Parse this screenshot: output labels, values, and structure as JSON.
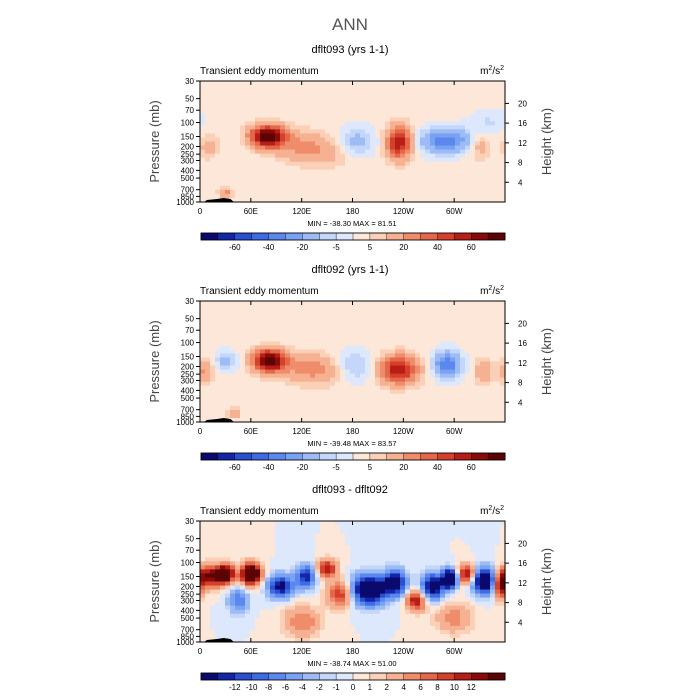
{
  "page_title": "ANN",
  "chart_data": [
    {
      "type": "heatmap",
      "title": "dflt093 (yrs 1-1)",
      "subtitle": "Transient eddy momentum",
      "units": "m2/s2",
      "units_base": "m",
      "units_sup1": "2",
      "units_mid": "/s",
      "units_sup2": "2",
      "ylabel": "Pressure (mb)",
      "ylabel2": "Height (km)",
      "x_ticks": [
        "0",
        "60E",
        "120E",
        "180",
        "120W",
        "60W"
      ],
      "x_tick_lon": [
        0,
        60,
        120,
        180,
        240,
        300
      ],
      "xlim": [
        0,
        360
      ],
      "y_ticks": [
        "30",
        "50",
        "70",
        "100",
        "150",
        "200",
        "250",
        "300",
        "400",
        "500",
        "700",
        "850",
        "1000"
      ],
      "y_tick_p": [
        30,
        50,
        70,
        100,
        150,
        200,
        250,
        300,
        400,
        500,
        700,
        850,
        1000
      ],
      "ylim": [
        30,
        1000
      ],
      "height_ticks": [
        "20",
        "16",
        "12",
        "8",
        "4"
      ],
      "height_km": [
        20,
        16,
        12,
        8,
        4
      ],
      "stats": "MIN = -38.30   MAX =  81.51",
      "min": -38.3,
      "max": 81.51,
      "colorbar_labels": [
        "-60",
        "-40",
        "-20",
        "-5",
        "5",
        "20",
        "40",
        "60"
      ],
      "levels": [
        -70,
        -60,
        -50,
        -40,
        -30,
        -20,
        -10,
        -5,
        0,
        5,
        10,
        20,
        30,
        40,
        50,
        60,
        70
      ],
      "colors": [
        "#0a0a6e",
        "#1426a8",
        "#2a4fd0",
        "#3d6be3",
        "#5a88ee",
        "#7aa2f2",
        "#9dbcf6",
        "#c4d6fa",
        "#dde8fc",
        "#fde7d8",
        "#fbd0b6",
        "#f6b092",
        "#ef8c6a",
        "#e4674a",
        "#d5402b",
        "#b81d16",
        "#8a0a07",
        "#5c0303"
      ],
      "features": [
        {
          "lon": 80,
          "p": 150,
          "sx": 14,
          "sy": 0.22,
          "a": 82
        },
        {
          "lon": 120,
          "p": 200,
          "sx": 22,
          "sy": 0.3,
          "a": 20
        },
        {
          "lon": 10,
          "p": 200,
          "sx": 9,
          "sy": 0.25,
          "a": 12
        },
        {
          "lon": 155,
          "p": 250,
          "sx": 25,
          "sy": 0.3,
          "a": 8
        },
        {
          "lon": 30,
          "p": 780,
          "sx": 5,
          "sy": 0.1,
          "a": 25
        },
        {
          "lon": 235,
          "p": 180,
          "sx": 10,
          "sy": 0.32,
          "a": 58
        },
        {
          "lon": 290,
          "p": 170,
          "sx": 20,
          "sy": 0.24,
          "a": -38
        },
        {
          "lon": 185,
          "p": 180,
          "sx": 15,
          "sy": 0.3,
          "a": -16
        },
        {
          "lon": 330,
          "p": 200,
          "sx": 9,
          "sy": 0.25,
          "a": 14
        },
        {
          "lon": 340,
          "p": 100,
          "sx": 15,
          "sy": 0.25,
          "a": -7
        }
      ]
    },
    {
      "type": "heatmap",
      "title": "dflt092 (yrs 1-1)",
      "subtitle": "Transient eddy momentum",
      "units": "m2/s2",
      "units_base": "m",
      "units_sup1": "2",
      "units_mid": "/s",
      "units_sup2": "2",
      "ylabel": "Pressure (mb)",
      "ylabel2": "Height (km)",
      "x_ticks": [
        "0",
        "60E",
        "120E",
        "180",
        "120W",
        "60W"
      ],
      "x_tick_lon": [
        0,
        60,
        120,
        180,
        240,
        300
      ],
      "xlim": [
        0,
        360
      ],
      "y_ticks": [
        "30",
        "50",
        "70",
        "100",
        "150",
        "200",
        "250",
        "300",
        "400",
        "500",
        "700",
        "850",
        "1000"
      ],
      "y_tick_p": [
        30,
        50,
        70,
        100,
        150,
        200,
        250,
        300,
        400,
        500,
        700,
        850,
        1000
      ],
      "ylim": [
        30,
        1000
      ],
      "height_ticks": [
        "20",
        "16",
        "12",
        "8",
        "4"
      ],
      "height_km": [
        20,
        16,
        12,
        8,
        4
      ],
      "stats": "MIN = -39.48   MAX =  83.57",
      "min": -39.48,
      "max": 83.57,
      "colorbar_labels": [
        "-60",
        "-40",
        "-20",
        "-5",
        "5",
        "20",
        "40",
        "60"
      ],
      "levels": [
        -70,
        -60,
        -50,
        -40,
        -30,
        -20,
        -10,
        -5,
        0,
        5,
        10,
        20,
        30,
        40,
        50,
        60,
        70
      ],
      "colors": [
        "#0a0a6e",
        "#1426a8",
        "#2a4fd0",
        "#3d6be3",
        "#5a88ee",
        "#7aa2f2",
        "#9dbcf6",
        "#c4d6fa",
        "#dde8fc",
        "#fde7d8",
        "#fbd0b6",
        "#f6b092",
        "#ef8c6a",
        "#e4674a",
        "#d5402b",
        "#b81d16",
        "#8a0a07",
        "#5c0303"
      ],
      "features": [
        {
          "lon": 82,
          "p": 170,
          "sx": 13,
          "sy": 0.22,
          "a": 84
        },
        {
          "lon": 125,
          "p": 210,
          "sx": 20,
          "sy": 0.3,
          "a": 20
        },
        {
          "lon": 5,
          "p": 230,
          "sx": 8,
          "sy": 0.25,
          "a": 20
        },
        {
          "lon": 30,
          "p": 170,
          "sx": 10,
          "sy": 0.2,
          "a": -14
        },
        {
          "lon": 40,
          "p": 780,
          "sx": 5,
          "sy": 0.1,
          "a": 20
        },
        {
          "lon": 235,
          "p": 220,
          "sx": 15,
          "sy": 0.28,
          "a": 58
        },
        {
          "lon": 292,
          "p": 190,
          "sx": 11,
          "sy": 0.25,
          "a": -39
        },
        {
          "lon": 180,
          "p": 200,
          "sx": 15,
          "sy": 0.3,
          "a": -15
        },
        {
          "lon": 335,
          "p": 230,
          "sx": 7,
          "sy": 0.25,
          "a": 18
        },
        {
          "lon": 155,
          "p": 230,
          "sx": 20,
          "sy": 0.3,
          "a": 9
        }
      ]
    },
    {
      "type": "heatmap",
      "title": "dflt093 - dflt092",
      "subtitle": "Transient eddy momentum",
      "units": "m2/s2",
      "units_base": "m",
      "units_sup1": "2",
      "units_mid": "/s",
      "units_sup2": "2",
      "ylabel": "Pressure (mb)",
      "ylabel2": "Height (km)",
      "x_ticks": [
        "0",
        "60E",
        "120E",
        "180",
        "120W",
        "60W"
      ],
      "x_tick_lon": [
        0,
        60,
        120,
        180,
        240,
        300
      ],
      "xlim": [
        0,
        360
      ],
      "y_ticks": [
        "30",
        "50",
        "70",
        "100",
        "150",
        "200",
        "250",
        "300",
        "400",
        "500",
        "700",
        "850",
        "1000"
      ],
      "y_tick_p": [
        30,
        50,
        70,
        100,
        150,
        200,
        250,
        300,
        400,
        500,
        700,
        850,
        1000
      ],
      "ylim": [
        30,
        1000
      ],
      "height_ticks": [
        "20",
        "16",
        "12",
        "8",
        "4"
      ],
      "height_km": [
        20,
        16,
        12,
        8,
        4
      ],
      "stats": "MIN = -38.74   MAX =  51.00",
      "min": -38.74,
      "max": 51.0,
      "colorbar_labels": [
        "-12",
        "-10",
        "-8",
        "-6",
        "-4",
        "-2",
        "-1",
        "0",
        "1",
        "2",
        "4",
        "6",
        "8",
        "10",
        "12"
      ],
      "levels": [
        -14,
        -12,
        -10,
        -8,
        -6,
        -4,
        -2,
        -1,
        0,
        1,
        2,
        4,
        6,
        8,
        10,
        12,
        14
      ],
      "colors": [
        "#0a0a6e",
        "#1426a8",
        "#2a4fd0",
        "#3d6be3",
        "#5a88ee",
        "#7aa2f2",
        "#9dbcf6",
        "#c4d6fa",
        "#dde8fc",
        "#fde7d8",
        "#fbd0b6",
        "#f6b092",
        "#ef8c6a",
        "#e4674a",
        "#d5402b",
        "#b81d16",
        "#8a0a07",
        "#5c0303"
      ],
      "features": [
        {
          "lon": 10,
          "p": 150,
          "sx": 12,
          "sy": 0.22,
          "a": 14
        },
        {
          "lon": 30,
          "p": 140,
          "sx": 7,
          "sy": 0.18,
          "a": 20
        },
        {
          "lon": 60,
          "p": 140,
          "sx": 8,
          "sy": 0.2,
          "a": 25
        },
        {
          "lon": 95,
          "p": 200,
          "sx": 10,
          "sy": 0.22,
          "a": -16
        },
        {
          "lon": 125,
          "p": 150,
          "sx": 8,
          "sy": 0.22,
          "a": -14
        },
        {
          "lon": 150,
          "p": 120,
          "sx": 8,
          "sy": 0.18,
          "a": 12
        },
        {
          "lon": 165,
          "p": 250,
          "sx": 10,
          "sy": 0.25,
          "a": 10
        },
        {
          "lon": 200,
          "p": 220,
          "sx": 13,
          "sy": 0.28,
          "a": -24
        },
        {
          "lon": 230,
          "p": 180,
          "sx": 9,
          "sy": 0.25,
          "a": -18
        },
        {
          "lon": 255,
          "p": 300,
          "sx": 8,
          "sy": 0.2,
          "a": 12
        },
        {
          "lon": 275,
          "p": 200,
          "sx": 9,
          "sy": 0.25,
          "a": -18
        },
        {
          "lon": 295,
          "p": 160,
          "sx": 6,
          "sy": 0.18,
          "a": -28
        },
        {
          "lon": 315,
          "p": 140,
          "sx": 8,
          "sy": 0.18,
          "a": 14
        },
        {
          "lon": 335,
          "p": 170,
          "sx": 9,
          "sy": 0.25,
          "a": -22
        },
        {
          "lon": 355,
          "p": 200,
          "sx": 5,
          "sy": 0.25,
          "a": 14
        },
        {
          "lon": 45,
          "p": 300,
          "sx": 8,
          "sy": 0.25,
          "a": -8
        },
        {
          "lon": 120,
          "p": 550,
          "sx": 15,
          "sy": 0.3,
          "a": 6
        },
        {
          "lon": 300,
          "p": 500,
          "sx": 15,
          "sy": 0.3,
          "a": 5
        }
      ]
    }
  ]
}
